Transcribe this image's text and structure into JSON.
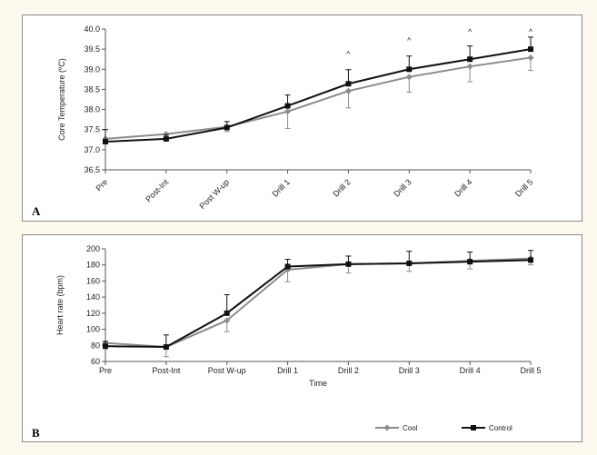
{
  "colors": {
    "cool": "#8c8c8c",
    "control": "#111111"
  },
  "chart_data": [
    {
      "type": "line",
      "panel": "A",
      "categories": [
        "Pre",
        "Post-Int",
        "Post W-up",
        "Drill 1",
        "Drill 2",
        "Drill 3",
        "Drill 4",
        "Drill 5"
      ],
      "ylabel": "Core Temperature (ºC)",
      "xlabel": "",
      "ylim": [
        36.5,
        40.0
      ],
      "yticks": [
        "36.5",
        "37.0",
        "37.5",
        "38.0",
        "38.5",
        "39.0",
        "39.5",
        "40.0"
      ],
      "grid": false,
      "annotations": [
        "^",
        "^",
        "^",
        "^"
      ],
      "annotation_categories": [
        "Drill 2",
        "Drill 3",
        "Drill 4",
        "Drill 5"
      ],
      "series": [
        {
          "name": "Cool",
          "marker": "diamond",
          "values": [
            37.27,
            37.39,
            37.57,
            37.95,
            38.46,
            38.81,
            39.07,
            39.29
          ],
          "errors": [
            null,
            0.15,
            0.12,
            0.42,
            0.42,
            0.38,
            0.38,
            0.32
          ]
        },
        {
          "name": "Control",
          "marker": "square",
          "values": [
            37.2,
            37.27,
            37.55,
            38.09,
            38.64,
            39.0,
            39.25,
            39.5
          ],
          "errors": [
            0.3,
            0.1,
            0.15,
            0.27,
            0.35,
            0.33,
            0.33,
            0.3
          ]
        }
      ]
    },
    {
      "type": "line",
      "panel": "B",
      "categories": [
        "Pre",
        "Post-Int",
        "Post W-up",
        "Drill 1",
        "Drill 2",
        "Drill 3",
        "Drill 4",
        "Drill 5"
      ],
      "ylabel": "Heart rate (bpm)",
      "xlabel": "Time",
      "ylim": [
        60,
        200
      ],
      "yticks": [
        "60",
        "80",
        "100",
        "120",
        "140",
        "160",
        "180",
        "200"
      ],
      "grid": false,
      "legend_position": "bottom-right",
      "series": [
        {
          "name": "Cool",
          "marker": "diamond",
          "values": [
            83,
            78,
            111,
            174,
            181,
            182,
            185,
            188
          ],
          "errors": [
            7,
            12,
            14,
            15,
            11,
            10,
            10,
            8
          ]
        },
        {
          "name": "Control",
          "marker": "square",
          "values": [
            79,
            78,
            120,
            178,
            181,
            182,
            184,
            186
          ],
          "errors": [
            6,
            15,
            23,
            9,
            10,
            15,
            12,
            12
          ]
        }
      ]
    }
  ],
  "panel_labels": [
    "A",
    "B"
  ]
}
